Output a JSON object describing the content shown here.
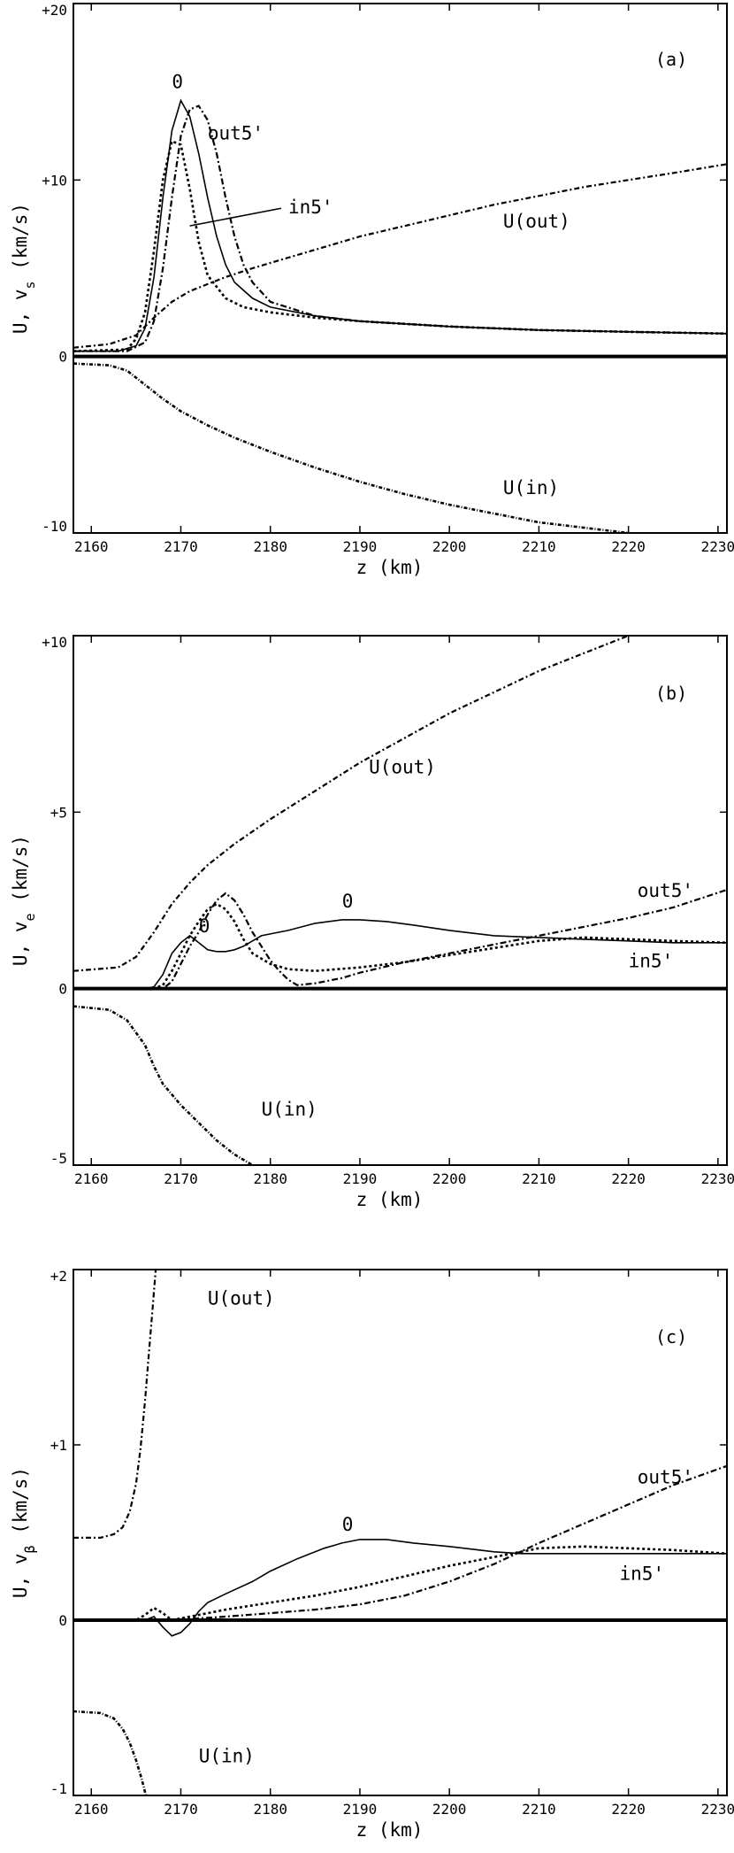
{
  "chart_data": [
    {
      "panel": "(a)",
      "type": "line",
      "xlabel": "z (km)",
      "ylabel_prefix": "U, v",
      "ylabel_sub": "s",
      "ylabel_suffix": " (km/s)",
      "xlim": [
        2158,
        2231
      ],
      "ylim": [
        -10,
        20
      ],
      "xticks": [
        2160,
        2170,
        2180,
        2190,
        2200,
        2210,
        2220,
        2230
      ],
      "yticks": [
        {
          "value": 20,
          "label": "+20"
        },
        {
          "value": 10,
          "label": "+10"
        },
        {
          "value": 0,
          "label": "0"
        },
        {
          "value": -10,
          "label": "-10"
        }
      ],
      "series": [
        {
          "name": "U(out)",
          "style": "out",
          "x": [
            2158,
            2162,
            2165,
            2167,
            2169,
            2171,
            2173,
            2175,
            2178,
            2182,
            2186,
            2190,
            2195,
            2200,
            2205,
            2210,
            2215,
            2220,
            2225,
            2231
          ],
          "y": [
            0.5,
            0.7,
            1.2,
            2.2,
            3.1,
            3.7,
            4.1,
            4.5,
            5.0,
            5.6,
            6.2,
            6.8,
            7.4,
            8.0,
            8.6,
            9.1,
            9.6,
            10.0,
            10.4,
            10.9
          ]
        },
        {
          "name": "U(in)",
          "style": "in",
          "x": [
            2158,
            2162,
            2164,
            2166,
            2168,
            2170,
            2173,
            2176,
            2180,
            2185,
            2190,
            2195,
            2200,
            2205,
            2210,
            2215,
            2220
          ],
          "y": [
            -0.4,
            -0.5,
            -0.8,
            -1.6,
            -2.4,
            -3.1,
            -3.9,
            -4.6,
            -5.4,
            -6.3,
            -7.1,
            -7.8,
            -8.4,
            -8.9,
            -9.4,
            -9.7,
            -10.0
          ]
        },
        {
          "name": "0",
          "style": "solid",
          "x": [
            2158,
            2163,
            2165,
            2166,
            2167,
            2168,
            2169,
            2170,
            2171,
            2172,
            2173,
            2174,
            2175,
            2176,
            2178,
            2180,
            2185,
            2190,
            2200,
            2210,
            2220,
            2231
          ],
          "y": [
            0.3,
            0.3,
            0.6,
            1.6,
            4.5,
            9.0,
            12.8,
            14.5,
            13.6,
            11.5,
            9.0,
            6.8,
            5.2,
            4.2,
            3.3,
            2.8,
            2.3,
            2.0,
            1.7,
            1.5,
            1.4,
            1.3
          ]
        },
        {
          "name": "out5'",
          "style": "dash",
          "x": [
            2158,
            2164,
            2166,
            2167,
            2168,
            2169,
            2170,
            2171,
            2172,
            2173,
            2174,
            2175,
            2176,
            2177,
            2178,
            2180,
            2185,
            2190,
            2200,
            2210,
            2220,
            2231
          ],
          "y": [
            0.3,
            0.3,
            0.8,
            2.0,
            5.0,
            9.0,
            12.5,
            14.0,
            14.2,
            13.4,
            11.5,
            9.0,
            6.8,
            5.2,
            4.2,
            3.1,
            2.3,
            2.0,
            1.7,
            1.5,
            1.4,
            1.3
          ]
        },
        {
          "name": "in5'",
          "style": "dots",
          "x": [
            2158,
            2164,
            2165,
            2166,
            2167,
            2168,
            2169,
            2170,
            2171,
            2172,
            2173,
            2175,
            2177,
            2180,
            2185,
            2190,
            2200,
            2210,
            2220,
            2231
          ],
          "y": [
            0.3,
            0.4,
            1.0,
            2.5,
            6.0,
            10.0,
            12.2,
            12.0,
            9.5,
            6.5,
            4.6,
            3.3,
            2.8,
            2.5,
            2.2,
            2.0,
            1.7,
            1.5,
            1.4,
            1.3
          ]
        }
      ],
      "labels": [
        {
          "text": "(a)",
          "x": 2223,
          "y": 16.5,
          "kind": "tag"
        },
        {
          "text": "0",
          "x": 2169,
          "y": 15.2,
          "kind": "curve"
        },
        {
          "text": "out5'",
          "x": 2173,
          "y": 12.3,
          "kind": "curve"
        },
        {
          "text": "in5'",
          "x": 2182,
          "y": 8.1,
          "kind": "curve",
          "pointer_to": [
            2171,
            7.4
          ]
        },
        {
          "text": "U(out)",
          "x": 2206,
          "y": 7.3,
          "kind": "curve"
        },
        {
          "text": "U(in)",
          "x": 2206,
          "y": -7.8,
          "kind": "curve"
        }
      ]
    },
    {
      "panel": "(b)",
      "type": "line",
      "xlabel": "z (km)",
      "ylabel_prefix": "U, v",
      "ylabel_sub": "e",
      "ylabel_suffix": " (km/s)",
      "xlim": [
        2158,
        2231
      ],
      "ylim": [
        -5,
        10
      ],
      "xticks": [
        2160,
        2170,
        2180,
        2190,
        2200,
        2210,
        2220,
        2230
      ],
      "yticks": [
        {
          "value": 10,
          "label": "+10"
        },
        {
          "value": 5,
          "label": "+5"
        },
        {
          "value": 0,
          "label": "0"
        },
        {
          "value": -5,
          "label": "-5"
        }
      ],
      "series": [
        {
          "name": "U(out)",
          "style": "out",
          "x": [
            2158,
            2163,
            2165,
            2167,
            2169,
            2171,
            2173,
            2176,
            2180,
            2185,
            2190,
            2195,
            2200,
            2205,
            2210,
            2215,
            2220,
            2225
          ],
          "y": [
            0.5,
            0.6,
            0.9,
            1.6,
            2.4,
            3.0,
            3.5,
            4.1,
            4.8,
            5.6,
            6.4,
            7.1,
            7.8,
            8.4,
            9.0,
            9.5,
            10.0,
            10.5
          ]
        },
        {
          "name": "U(in)",
          "style": "in",
          "x": [
            2158,
            2162,
            2164,
            2166,
            2167,
            2168,
            2170,
            2172,
            2174,
            2176,
            2178
          ],
          "y": [
            -0.5,
            -0.6,
            -0.9,
            -1.6,
            -2.2,
            -2.7,
            -3.3,
            -3.8,
            -4.3,
            -4.7,
            -5.0
          ]
        },
        {
          "name": "0",
          "style": "solid",
          "x": [
            2158,
            2166,
            2167,
            2168,
            2169,
            2170,
            2171,
            2172,
            2173,
            2174,
            2175,
            2176,
            2177,
            2178,
            2179,
            2180,
            2182,
            2185,
            2188,
            2190,
            2193,
            2196,
            2200,
            2205,
            2210,
            2215,
            2220,
            2225,
            2231
          ],
          "y": [
            0,
            0,
            0.05,
            0.4,
            1.0,
            1.3,
            1.5,
            1.3,
            1.1,
            1.05,
            1.05,
            1.1,
            1.2,
            1.35,
            1.5,
            1.55,
            1.65,
            1.85,
            1.95,
            1.95,
            1.9,
            1.8,
            1.65,
            1.5,
            1.45,
            1.4,
            1.35,
            1.3,
            1.3
          ]
        },
        {
          "name": "out5'",
          "style": "dash",
          "x": [
            2158,
            2168,
            2169,
            2170,
            2171,
            2172,
            2173,
            2174,
            2175,
            2176,
            2177,
            2178,
            2179,
            2180,
            2181,
            2182,
            2183,
            2185,
            2188,
            2190,
            2195,
            2200,
            2205,
            2210,
            2215,
            2220,
            2225,
            2231
          ],
          "y": [
            0,
            0,
            0.2,
            0.7,
            1.2,
            1.6,
            2.1,
            2.5,
            2.7,
            2.5,
            2.1,
            1.6,
            1.2,
            0.8,
            0.5,
            0.25,
            0.1,
            0.15,
            0.3,
            0.45,
            0.75,
            1.0,
            1.25,
            1.5,
            1.75,
            2.0,
            2.3,
            2.8
          ]
        },
        {
          "name": "in5'",
          "style": "dots",
          "x": [
            2158,
            2167,
            2168,
            2169,
            2170,
            2171,
            2172,
            2173,
            2174,
            2175,
            2176,
            2177,
            2178,
            2180,
            2182,
            2185,
            2190,
            2195,
            2200,
            2205,
            2210,
            2215,
            2220,
            2225,
            2231
          ],
          "y": [
            0,
            0,
            0.1,
            0.5,
            1.0,
            1.5,
            1.9,
            2.25,
            2.4,
            2.25,
            1.9,
            1.4,
            1.0,
            0.7,
            0.55,
            0.5,
            0.6,
            0.75,
            0.95,
            1.15,
            1.35,
            1.45,
            1.4,
            1.35,
            1.3
          ]
        }
      ],
      "labels": [
        {
          "text": "(b)",
          "x": 2223,
          "y": 8.2,
          "kind": "tag"
        },
        {
          "text": "U(out)",
          "x": 2191,
          "y": 6.1,
          "kind": "curve"
        },
        {
          "text": "0",
          "x": 2188,
          "y": 2.3,
          "kind": "curve"
        },
        {
          "text": "0",
          "x": 2172,
          "y": 1.6,
          "kind": "curve"
        },
        {
          "text": "out5'",
          "x": 2221,
          "y": 2.6,
          "kind": "curve"
        },
        {
          "text": "in5'",
          "x": 2220,
          "y": 0.6,
          "kind": "curve"
        },
        {
          "text": "U(in)",
          "x": 2179,
          "y": -3.6,
          "kind": "curve"
        }
      ]
    },
    {
      "panel": "(c)",
      "type": "line",
      "xlabel": "z (km)",
      "ylabel_prefix": "U, v",
      "ylabel_sub": "β",
      "ylabel_suffix": " (km/s)",
      "xlim": [
        2158,
        2231
      ],
      "ylim": [
        -1,
        2
      ],
      "xticks": [
        2160,
        2170,
        2180,
        2190,
        2200,
        2210,
        2220,
        2230
      ],
      "yticks": [
        {
          "value": 2,
          "label": "+2"
        },
        {
          "value": 1,
          "label": "+1"
        },
        {
          "value": 0,
          "label": "0"
        },
        {
          "value": -1,
          "label": "-1"
        }
      ],
      "series": [
        {
          "name": "U(out)",
          "style": "out",
          "x": [
            2158,
            2161,
            2162.5,
            2163.5,
            2164.3,
            2165,
            2165.5,
            2166,
            2166.4,
            2166.8,
            2167.2
          ],
          "y": [
            0.47,
            0.47,
            0.49,
            0.53,
            0.62,
            0.78,
            0.98,
            1.25,
            1.5,
            1.75,
            2.0
          ]
        },
        {
          "name": "U(in)",
          "style": "in",
          "x": [
            2158,
            2161,
            2162.5,
            2163.5,
            2164.3,
            2165,
            2165.6,
            2166.1
          ],
          "y": [
            -0.52,
            -0.53,
            -0.56,
            -0.62,
            -0.7,
            -0.8,
            -0.9,
            -1.0
          ]
        },
        {
          "name": "0",
          "style": "solid",
          "x": [
            2158,
            2166,
            2167,
            2168,
            2169,
            2170,
            2171,
            2172,
            2173,
            2175,
            2178,
            2180,
            2183,
            2186,
            2188,
            2190,
            2193,
            2196,
            2200,
            2205,
            2208,
            2210,
            2220,
            2231
          ],
          "y": [
            0,
            0,
            0.02,
            -0.04,
            -0.09,
            -0.07,
            -0.02,
            0.05,
            0.1,
            0.15,
            0.22,
            0.28,
            0.35,
            0.41,
            0.44,
            0.46,
            0.46,
            0.44,
            0.42,
            0.39,
            0.38,
            0.38,
            0.38,
            0.38
          ]
        },
        {
          "name": "out5'",
          "style": "dash",
          "x": [
            2158,
            2168,
            2170,
            2172,
            2175,
            2180,
            2185,
            2190,
            2195,
            2200,
            2205,
            2210,
            2215,
            2220,
            2225,
            2231
          ],
          "y": [
            0,
            0,
            0.005,
            0.01,
            0.02,
            0.04,
            0.06,
            0.09,
            0.14,
            0.22,
            0.32,
            0.44,
            0.55,
            0.66,
            0.77,
            0.88
          ]
        },
        {
          "name": "in5'",
          "style": "dots",
          "x": [
            2158,
            2165,
            2166,
            2167,
            2168,
            2169,
            2170,
            2172,
            2175,
            2180,
            2185,
            2190,
            2195,
            2200,
            2205,
            2210,
            2215,
            2220,
            2225,
            2231
          ],
          "y": [
            0,
            0,
            0.03,
            0.07,
            0.04,
            0,
            0.01,
            0.03,
            0.06,
            0.1,
            0.14,
            0.19,
            0.25,
            0.31,
            0.36,
            0.41,
            0.42,
            0.41,
            0.4,
            0.38
          ]
        }
      ],
      "labels": [
        {
          "text": "(c)",
          "x": 2223,
          "y": 1.58,
          "kind": "tag"
        },
        {
          "text": "U(out)",
          "x": 2173,
          "y": 1.8,
          "kind": "curve"
        },
        {
          "text": "out5'",
          "x": 2221,
          "y": 0.78,
          "kind": "curve"
        },
        {
          "text": "0",
          "x": 2188,
          "y": 0.51,
          "kind": "curve"
        },
        {
          "text": "in5'",
          "x": 2219,
          "y": 0.23,
          "kind": "curve"
        },
        {
          "text": "U(in)",
          "x": 2172,
          "y": -0.81,
          "kind": "curve"
        }
      ]
    }
  ]
}
